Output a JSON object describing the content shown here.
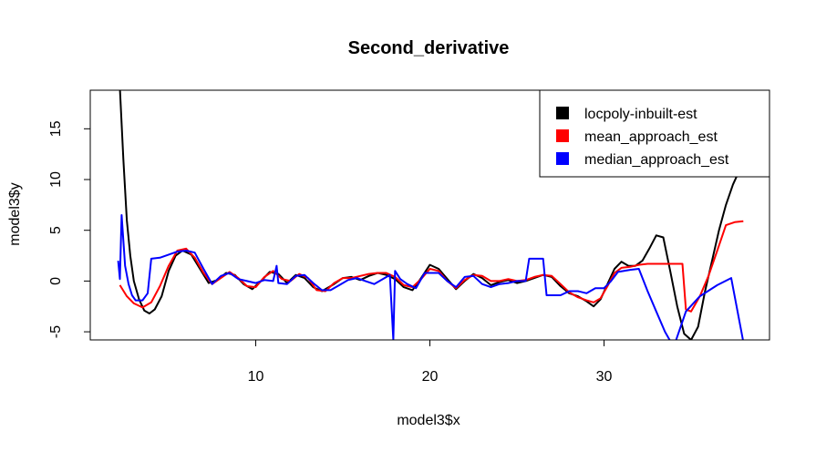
{
  "chart_data": {
    "type": "line",
    "title": "Second_derivative",
    "xlabel": "model3$x",
    "ylabel": "model3$y",
    "xlim": [
      0.5,
      39.5
    ],
    "ylim": [
      -5.8,
      18.8
    ],
    "x_ticks": [
      10,
      20,
      30
    ],
    "x_tick_labels": [
      "10",
      "20",
      "30"
    ],
    "y_ticks": [
      -5,
      0,
      5,
      10,
      15
    ],
    "y_tick_labels": [
      "-5",
      "0",
      "5",
      "10",
      "15"
    ],
    "legend_position": "top-right",
    "series": [
      {
        "name": "locpoly-inbuilt-est",
        "color": "#000000",
        "points": [
          [
            2.2,
            19.0
          ],
          [
            2.4,
            12.0
          ],
          [
            2.6,
            6.0
          ],
          [
            2.8,
            2.5
          ],
          [
            3.0,
            0.0
          ],
          [
            3.3,
            -1.8
          ],
          [
            3.6,
            -2.9
          ],
          [
            3.9,
            -3.2
          ],
          [
            4.2,
            -2.8
          ],
          [
            4.6,
            -1.5
          ],
          [
            5.0,
            1.0
          ],
          [
            5.4,
            2.5
          ],
          [
            5.8,
            3.0
          ],
          [
            6.3,
            2.6
          ],
          [
            6.8,
            1.2
          ],
          [
            7.3,
            -0.2
          ],
          [
            7.8,
            0.1
          ],
          [
            8.3,
            0.8
          ],
          [
            8.8,
            0.6
          ],
          [
            9.3,
            -0.3
          ],
          [
            9.8,
            -0.8
          ],
          [
            10.3,
            0.0
          ],
          [
            10.8,
            0.9
          ],
          [
            11.3,
            0.7
          ],
          [
            11.8,
            -0.2
          ],
          [
            12.3,
            0.6
          ],
          [
            12.8,
            0.3
          ],
          [
            13.3,
            -0.6
          ],
          [
            13.8,
            -1.0
          ],
          [
            14.5,
            -0.3
          ],
          [
            15.0,
            0.3
          ],
          [
            15.5,
            0.4
          ],
          [
            16.0,
            0.1
          ],
          [
            16.5,
            0.5
          ],
          [
            17.0,
            0.8
          ],
          [
            17.5,
            0.6
          ],
          [
            18.0,
            0.2
          ],
          [
            18.5,
            -0.6
          ],
          [
            19.0,
            -0.9
          ],
          [
            19.5,
            0.3
          ],
          [
            20.0,
            1.6
          ],
          [
            20.5,
            1.2
          ],
          [
            21.0,
            0.2
          ],
          [
            21.5,
            -0.8
          ],
          [
            22.0,
            0.0
          ],
          [
            22.5,
            0.7
          ],
          [
            23.0,
            0.3
          ],
          [
            23.5,
            -0.4
          ],
          [
            24.0,
            -0.1
          ],
          [
            24.5,
            0.1
          ],
          [
            25.0,
            -0.2
          ],
          [
            25.5,
            0.0
          ],
          [
            26.0,
            0.3
          ],
          [
            26.5,
            0.6
          ],
          [
            27.0,
            0.4
          ],
          [
            27.5,
            -0.5
          ],
          [
            28.0,
            -1.2
          ],
          [
            28.5,
            -1.5
          ],
          [
            29.0,
            -2.0
          ],
          [
            29.4,
            -2.5
          ],
          [
            29.8,
            -1.8
          ],
          [
            30.2,
            -0.3
          ],
          [
            30.6,
            1.2
          ],
          [
            31.0,
            1.9
          ],
          [
            31.4,
            1.5
          ],
          [
            31.8,
            1.5
          ],
          [
            32.2,
            2.0
          ],
          [
            32.6,
            3.2
          ],
          [
            33.0,
            4.5
          ],
          [
            33.4,
            4.3
          ],
          [
            33.8,
            1.0
          ],
          [
            34.2,
            -2.5
          ],
          [
            34.6,
            -5.2
          ],
          [
            35.0,
            -5.8
          ],
          [
            35.4,
            -4.5
          ],
          [
            35.8,
            -1.0
          ],
          [
            36.2,
            2.0
          ],
          [
            36.6,
            5.0
          ],
          [
            37.0,
            7.5
          ],
          [
            37.4,
            9.5
          ],
          [
            37.8,
            11.0
          ]
        ]
      },
      {
        "name": "mean_approach_est",
        "color": "#ff0000",
        "points": [
          [
            2.2,
            -0.4
          ],
          [
            2.6,
            -1.5
          ],
          [
            3.0,
            -2.2
          ],
          [
            3.5,
            -2.6
          ],
          [
            4.0,
            -2.1
          ],
          [
            4.5,
            -0.5
          ],
          [
            5.0,
            1.5
          ],
          [
            5.5,
            3.0
          ],
          [
            6.0,
            3.2
          ],
          [
            6.5,
            2.3
          ],
          [
            7.0,
            0.8
          ],
          [
            7.5,
            -0.3
          ],
          [
            8.0,
            0.3
          ],
          [
            8.5,
            0.9
          ],
          [
            9.0,
            0.3
          ],
          [
            9.5,
            -0.5
          ],
          [
            10.0,
            -0.6
          ],
          [
            10.5,
            0.4
          ],
          [
            11.0,
            1.0
          ],
          [
            11.5,
            0.2
          ],
          [
            12.0,
            0.0
          ],
          [
            12.5,
            0.7
          ],
          [
            13.0,
            0.3
          ],
          [
            13.5,
            -0.9
          ],
          [
            14.0,
            -1.0
          ],
          [
            14.5,
            -0.2
          ],
          [
            15.0,
            0.3
          ],
          [
            15.5,
            0.3
          ],
          [
            16.0,
            0.5
          ],
          [
            16.5,
            0.7
          ],
          [
            17.0,
            0.8
          ],
          [
            17.5,
            0.8
          ],
          [
            18.0,
            0.4
          ],
          [
            18.5,
            -0.4
          ],
          [
            19.0,
            -0.6
          ],
          [
            19.5,
            0.2
          ],
          [
            20.0,
            1.2
          ],
          [
            20.5,
            1.0
          ],
          [
            21.0,
            0.0
          ],
          [
            21.5,
            -0.7
          ],
          [
            22.0,
            0.1
          ],
          [
            22.5,
            0.6
          ],
          [
            23.0,
            0.5
          ],
          [
            23.5,
            0.0
          ],
          [
            24.0,
            0.0
          ],
          [
            24.5,
            0.2
          ],
          [
            25.0,
            0.0
          ],
          [
            25.5,
            0.1
          ],
          [
            26.0,
            0.4
          ],
          [
            26.5,
            0.6
          ],
          [
            27.0,
            0.5
          ],
          [
            27.5,
            -0.3
          ],
          [
            28.0,
            -1.1
          ],
          [
            28.5,
            -1.6
          ],
          [
            29.0,
            -1.9
          ],
          [
            29.4,
            -2.1
          ],
          [
            29.8,
            -1.7
          ],
          [
            30.2,
            -0.5
          ],
          [
            30.6,
            0.8
          ],
          [
            31.0,
            1.3
          ],
          [
            31.5,
            1.4
          ],
          [
            32.0,
            1.6
          ],
          [
            32.5,
            1.7
          ],
          [
            33.0,
            1.7
          ],
          [
            33.5,
            1.7
          ],
          [
            34.0,
            1.7
          ],
          [
            34.5,
            1.7
          ],
          [
            34.7,
            -2.8
          ],
          [
            35.0,
            -3.0
          ],
          [
            35.5,
            -1.5
          ],
          [
            36.0,
            0.5
          ],
          [
            36.5,
            3.0
          ],
          [
            37.0,
            5.5
          ],
          [
            37.5,
            5.8
          ],
          [
            38.0,
            5.9
          ]
        ]
      },
      {
        "name": "median_approach_est",
        "color": "#0000ff",
        "points": [
          [
            2.1,
            2.0
          ],
          [
            2.2,
            0.2
          ],
          [
            2.3,
            6.5
          ],
          [
            2.4,
            4.0
          ],
          [
            2.5,
            1.5
          ],
          [
            2.7,
            -0.3
          ],
          [
            2.9,
            -1.4
          ],
          [
            3.1,
            -1.9
          ],
          [
            3.5,
            -1.9
          ],
          [
            3.8,
            -1.2
          ],
          [
            4.0,
            2.2
          ],
          [
            4.5,
            2.3
          ],
          [
            5.0,
            2.6
          ],
          [
            5.5,
            2.9
          ],
          [
            6.0,
            3.0
          ],
          [
            6.5,
            2.8
          ],
          [
            7.0,
            1.2
          ],
          [
            7.5,
            -0.3
          ],
          [
            8.0,
            0.5
          ],
          [
            8.5,
            0.8
          ],
          [
            9.0,
            0.2
          ],
          [
            9.5,
            0.0
          ],
          [
            10.0,
            -0.2
          ],
          [
            10.5,
            0.1
          ],
          [
            11.0,
            0.0
          ],
          [
            11.2,
            1.5
          ],
          [
            11.3,
            -0.2
          ],
          [
            11.8,
            -0.3
          ],
          [
            12.3,
            0.5
          ],
          [
            12.8,
            0.6
          ],
          [
            13.3,
            -0.2
          ],
          [
            13.8,
            -0.9
          ],
          [
            14.3,
            -0.9
          ],
          [
            14.8,
            -0.4
          ],
          [
            15.3,
            0.1
          ],
          [
            15.8,
            0.3
          ],
          [
            16.3,
            0.0
          ],
          [
            16.8,
            -0.3
          ],
          [
            17.3,
            0.2
          ],
          [
            17.7,
            0.6
          ],
          [
            17.9,
            -5.8
          ],
          [
            18.0,
            1.0
          ],
          [
            18.3,
            0.2
          ],
          [
            18.7,
            -0.3
          ],
          [
            19.2,
            -0.7
          ],
          [
            19.7,
            0.8
          ],
          [
            20.5,
            0.8
          ],
          [
            21.0,
            0.0
          ],
          [
            21.5,
            -0.6
          ],
          [
            22.0,
            0.4
          ],
          [
            22.5,
            0.5
          ],
          [
            23.0,
            -0.3
          ],
          [
            23.5,
            -0.6
          ],
          [
            24.0,
            -0.3
          ],
          [
            24.5,
            -0.2
          ],
          [
            25.0,
            0.0
          ],
          [
            25.5,
            0.0
          ],
          [
            25.7,
            2.2
          ],
          [
            26.5,
            2.2
          ],
          [
            26.7,
            -1.4
          ],
          [
            27.5,
            -1.4
          ],
          [
            28.0,
            -1.0
          ],
          [
            28.5,
            -1.0
          ],
          [
            29.0,
            -1.2
          ],
          [
            29.5,
            -0.7
          ],
          [
            30.0,
            -0.7
          ],
          [
            30.4,
            0.0
          ],
          [
            30.8,
            0.9
          ],
          [
            31.5,
            1.1
          ],
          [
            32.0,
            1.2
          ],
          [
            32.5,
            -1.0
          ],
          [
            33.0,
            -3.0
          ],
          [
            33.5,
            -5.0
          ],
          [
            34.0,
            -6.5
          ],
          [
            34.7,
            -3.0
          ],
          [
            35.5,
            -1.5
          ],
          [
            36.5,
            -0.4
          ],
          [
            37.3,
            0.3
          ],
          [
            38.0,
            -6.0
          ]
        ]
      }
    ]
  }
}
